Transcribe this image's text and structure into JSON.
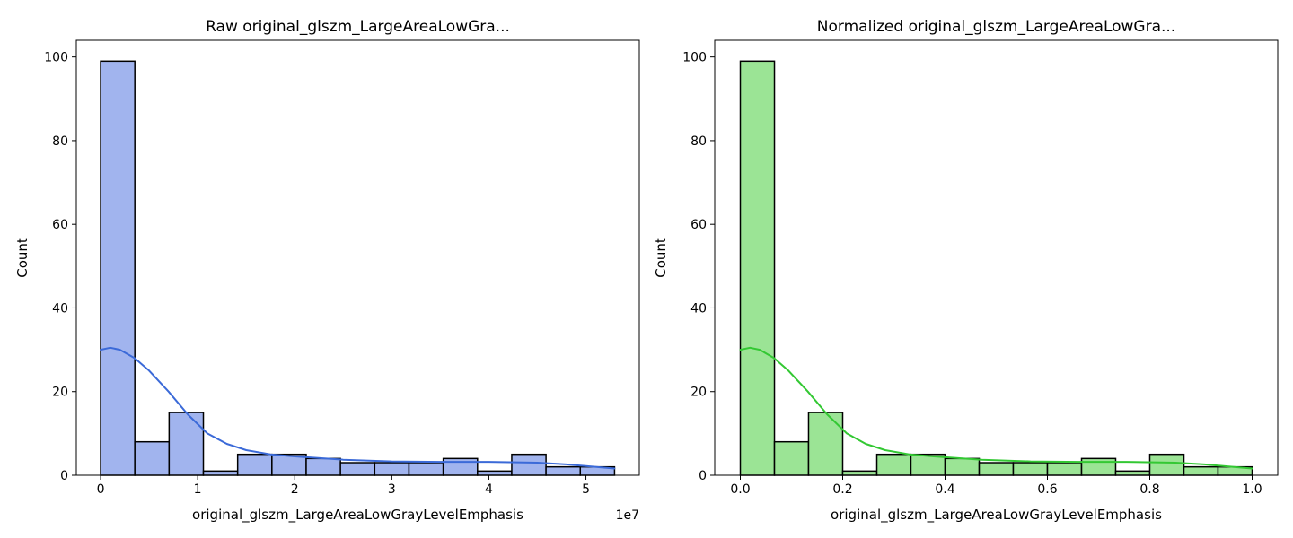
{
  "chart_data": [
    {
      "type": "bar",
      "title": "Raw original_glszm_LargeAreaLowGra...",
      "xlabel": "original_glszm_LargeAreaLowGrayLevelEmphasis",
      "ylabel": "Count",
      "x_offset_label": "1e7",
      "xlim": [
        -0.25,
        5.55
      ],
      "ylim": [
        0,
        104
      ],
      "x_ticks": [
        0,
        1,
        2,
        3,
        4,
        5
      ],
      "x_tick_labels": [
        "0",
        "1",
        "2",
        "3",
        "4",
        "5"
      ],
      "y_ticks": [
        0,
        20,
        40,
        60,
        80,
        100
      ],
      "y_tick_labels": [
        "0",
        "20",
        "40",
        "60",
        "80",
        "100"
      ],
      "bin_edges": [
        0,
        0.353,
        0.706,
        1.059,
        1.412,
        1.765,
        2.118,
        2.471,
        2.824,
        3.177,
        3.53,
        3.883,
        4.236,
        4.589,
        4.942,
        5.295
      ],
      "values": [
        99,
        8,
        15,
        1,
        5,
        5,
        4,
        3,
        3,
        3,
        4,
        1,
        5,
        2,
        2
      ],
      "kde": {
        "x": [
          0,
          0.1,
          0.2,
          0.35,
          0.5,
          0.7,
          0.9,
          1.1,
          1.3,
          1.5,
          1.75,
          2.0,
          2.5,
          3.0,
          3.5,
          4.0,
          4.5,
          4.8,
          5.0,
          5.2,
          5.295
        ],
        "y": [
          30,
          30.5,
          30,
          28,
          25,
          20,
          14.5,
          10,
          7.5,
          6,
          5,
          4.5,
          3.7,
          3.3,
          3.2,
          3.2,
          3,
          2.6,
          2.2,
          1.8,
          1.6
        ]
      },
      "colors": {
        "fill": "#a1b4ee",
        "line": "#3b6ad8",
        "edge": "#000000"
      }
    },
    {
      "type": "bar",
      "title": "Normalized original_glszm_LargeAreaLowGra...",
      "xlabel": "original_glszm_LargeAreaLowGrayLevelEmphasis",
      "ylabel": "Count",
      "x_offset_label": "",
      "xlim": [
        -0.05,
        1.05
      ],
      "ylim": [
        0,
        104
      ],
      "x_ticks": [
        0,
        0.2,
        0.4,
        0.6,
        0.8,
        1.0
      ],
      "x_tick_labels": [
        "0.0",
        "0.2",
        "0.4",
        "0.6",
        "0.8",
        "1.0"
      ],
      "y_ticks": [
        0,
        20,
        40,
        60,
        80,
        100
      ],
      "y_tick_labels": [
        "0",
        "20",
        "40",
        "60",
        "80",
        "100"
      ],
      "bin_edges": [
        0,
        0.0667,
        0.1333,
        0.2,
        0.2667,
        0.3333,
        0.4,
        0.4667,
        0.5333,
        0.6,
        0.6667,
        0.7333,
        0.8,
        0.8667,
        0.9333,
        1.0
      ],
      "values": [
        99,
        8,
        15,
        1,
        5,
        5,
        4,
        3,
        3,
        3,
        4,
        1,
        5,
        2,
        2
      ],
      "kde": {
        "x": [
          0,
          0.019,
          0.038,
          0.066,
          0.094,
          0.132,
          0.17,
          0.208,
          0.245,
          0.283,
          0.33,
          0.378,
          0.472,
          0.567,
          0.661,
          0.755,
          0.85,
          0.907,
          0.944,
          0.982,
          1.0
        ],
        "y": [
          30,
          30.5,
          30,
          28,
          25,
          20,
          14.5,
          10,
          7.5,
          6,
          5,
          4.5,
          3.7,
          3.3,
          3.2,
          3.2,
          3,
          2.6,
          2.2,
          1.8,
          1.6
        ]
      },
      "colors": {
        "fill": "#9be495",
        "line": "#33c833",
        "edge": "#000000"
      }
    }
  ]
}
